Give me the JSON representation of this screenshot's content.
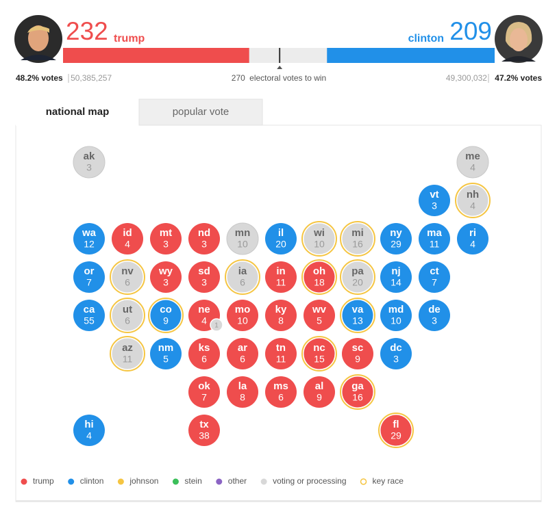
{
  "header": {
    "trump": {
      "name": "trump",
      "electoral_votes": 232,
      "color": "#ef4d4d",
      "votes_pct_label": "48.2% votes",
      "votes": "50,385,257"
    },
    "clinton": {
      "name": "clinton",
      "electoral_votes": 209,
      "color": "#2190e8",
      "votes_pct_label": "47.2% votes",
      "votes": "49,300,032"
    },
    "threshold": 270,
    "threshold_label": "electoral votes to win"
  },
  "tabs": [
    "national map",
    "popular vote"
  ],
  "active_tab": 0,
  "legend": [
    {
      "label": "trump",
      "color": "#ef4d4d"
    },
    {
      "label": "clinton",
      "color": "#2190e8"
    },
    {
      "label": "johnson",
      "color": "#f5c542"
    },
    {
      "label": "stein",
      "color": "#3bbf5a"
    },
    {
      "label": "other",
      "color": "#8b64c4"
    },
    {
      "label": "voting or processing",
      "color": "#d8d8d8"
    },
    {
      "label": "key race",
      "ring": "#f5c542"
    }
  ],
  "states": [
    {
      "abbr": "ak",
      "votes": 3,
      "status": 5
    },
    {
      "abbr": "me",
      "votes": 4,
      "status": 5
    },
    {
      "abbr": "vt",
      "votes": 3,
      "status": 1
    },
    {
      "abbr": "nh",
      "votes": 4,
      "status": 5,
      "key": true
    },
    {
      "abbr": "wa",
      "votes": 12,
      "status": 1
    },
    {
      "abbr": "id",
      "votes": 4,
      "status": 0
    },
    {
      "abbr": "mt",
      "votes": 3,
      "status": 0
    },
    {
      "abbr": "nd",
      "votes": 3,
      "status": 0
    },
    {
      "abbr": "mn",
      "votes": 10,
      "status": 5
    },
    {
      "abbr": "il",
      "votes": 20,
      "status": 1
    },
    {
      "abbr": "wi",
      "votes": 10,
      "status": 5,
      "key": true
    },
    {
      "abbr": "mi",
      "votes": 16,
      "status": 5,
      "key": true
    },
    {
      "abbr": "ny",
      "votes": 29,
      "status": 1
    },
    {
      "abbr": "ma",
      "votes": 11,
      "status": 1
    },
    {
      "abbr": "ri",
      "votes": 4,
      "status": 1
    },
    {
      "abbr": "or",
      "votes": 7,
      "status": 1
    },
    {
      "abbr": "nv",
      "votes": 6,
      "status": 5,
      "key": true
    },
    {
      "abbr": "wy",
      "votes": 3,
      "status": 0
    },
    {
      "abbr": "sd",
      "votes": 3,
      "status": 0
    },
    {
      "abbr": "ia",
      "votes": 6,
      "status": 5,
      "key": true
    },
    {
      "abbr": "in",
      "votes": 11,
      "status": 0
    },
    {
      "abbr": "oh",
      "votes": 18,
      "status": 0,
      "key": true
    },
    {
      "abbr": "pa",
      "votes": 20,
      "status": 5,
      "key": true
    },
    {
      "abbr": "nj",
      "votes": 14,
      "status": 1
    },
    {
      "abbr": "ct",
      "votes": 7,
      "status": 1
    },
    {
      "abbr": "ca",
      "votes": 55,
      "status": 1
    },
    {
      "abbr": "ut",
      "votes": 6,
      "status": 5,
      "key": true
    },
    {
      "abbr": "co",
      "votes": 9,
      "status": 1,
      "key": true
    },
    {
      "abbr": "ne",
      "votes": 4,
      "status": 0,
      "split": 1
    },
    {
      "abbr": "mo",
      "votes": 10,
      "status": 0
    },
    {
      "abbr": "ky",
      "votes": 8,
      "status": 0
    },
    {
      "abbr": "wv",
      "votes": 5,
      "status": 0
    },
    {
      "abbr": "va",
      "votes": 13,
      "status": 1,
      "key": true
    },
    {
      "abbr": "md",
      "votes": 10,
      "status": 1
    },
    {
      "abbr": "de",
      "votes": 3,
      "status": 1
    },
    {
      "abbr": "az",
      "votes": 11,
      "status": 5,
      "key": true
    },
    {
      "abbr": "nm",
      "votes": 5,
      "status": 1
    },
    {
      "abbr": "ks",
      "votes": 6,
      "status": 0
    },
    {
      "abbr": "ar",
      "votes": 6,
      "status": 0
    },
    {
      "abbr": "tn",
      "votes": 11,
      "status": 0
    },
    {
      "abbr": "nc",
      "votes": 15,
      "status": 0,
      "key": true
    },
    {
      "abbr": "sc",
      "votes": 9,
      "status": 0
    },
    {
      "abbr": "dc",
      "votes": 3,
      "status": 1
    },
    {
      "abbr": "ok",
      "votes": 7,
      "status": 0
    },
    {
      "abbr": "la",
      "votes": 8,
      "status": 0
    },
    {
      "abbr": "ms",
      "votes": 6,
      "status": 0
    },
    {
      "abbr": "al",
      "votes": 9,
      "status": 0
    },
    {
      "abbr": "ga",
      "votes": 16,
      "status": 0,
      "key": true
    },
    {
      "abbr": "hi",
      "votes": 4,
      "status": 1
    },
    {
      "abbr": "tx",
      "votes": 38,
      "status": 0
    },
    {
      "abbr": "fl",
      "votes": 29,
      "status": 0,
      "key": true
    }
  ]
}
